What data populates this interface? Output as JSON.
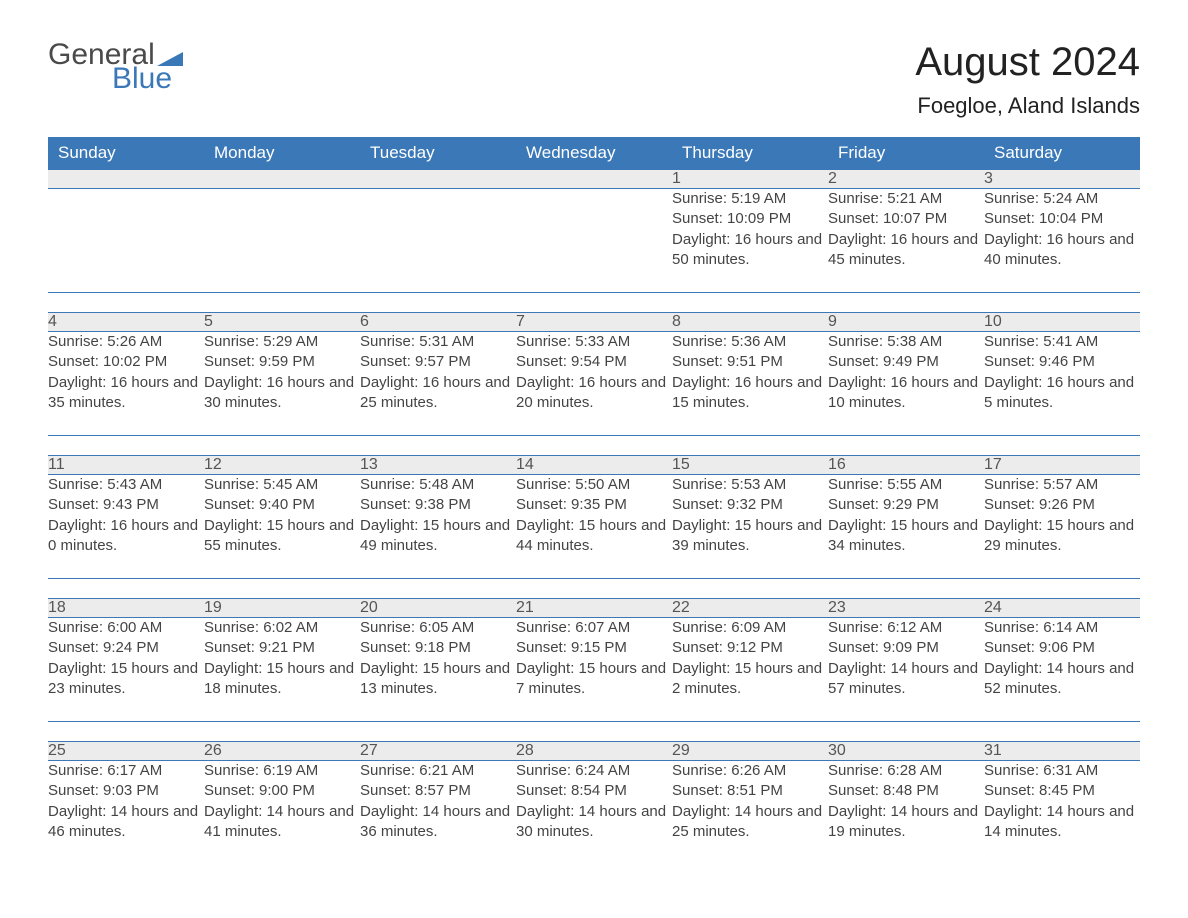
{
  "brand": {
    "part1": "General",
    "part2": "Blue",
    "accent_color": "#3b78b8"
  },
  "title": "August 2024",
  "location": "Foegloe, Aland Islands",
  "colors": {
    "header_bg": "#3b78b8",
    "header_text": "#ffffff",
    "daynum_bg": "#ececec",
    "text": "#444444",
    "rule": "#3b78b8",
    "background": "#ffffff"
  },
  "fonts": {
    "body_size": 15,
    "header_size": 17,
    "title_size": 40,
    "location_size": 22
  },
  "dayHeaders": [
    "Sunday",
    "Monday",
    "Tuesday",
    "Wednesday",
    "Thursday",
    "Friday",
    "Saturday"
  ],
  "weeks": [
    [
      null,
      null,
      null,
      null,
      {
        "d": "1",
        "sunrise": "5:19 AM",
        "sunset": "10:09 PM",
        "dl_h": "16",
        "dl_m": "50"
      },
      {
        "d": "2",
        "sunrise": "5:21 AM",
        "sunset": "10:07 PM",
        "dl_h": "16",
        "dl_m": "45"
      },
      {
        "d": "3",
        "sunrise": "5:24 AM",
        "sunset": "10:04 PM",
        "dl_h": "16",
        "dl_m": "40"
      }
    ],
    [
      {
        "d": "4",
        "sunrise": "5:26 AM",
        "sunset": "10:02 PM",
        "dl_h": "16",
        "dl_m": "35"
      },
      {
        "d": "5",
        "sunrise": "5:29 AM",
        "sunset": "9:59 PM",
        "dl_h": "16",
        "dl_m": "30"
      },
      {
        "d": "6",
        "sunrise": "5:31 AM",
        "sunset": "9:57 PM",
        "dl_h": "16",
        "dl_m": "25"
      },
      {
        "d": "7",
        "sunrise": "5:33 AM",
        "sunset": "9:54 PM",
        "dl_h": "16",
        "dl_m": "20"
      },
      {
        "d": "8",
        "sunrise": "5:36 AM",
        "sunset": "9:51 PM",
        "dl_h": "16",
        "dl_m": "15"
      },
      {
        "d": "9",
        "sunrise": "5:38 AM",
        "sunset": "9:49 PM",
        "dl_h": "16",
        "dl_m": "10"
      },
      {
        "d": "10",
        "sunrise": "5:41 AM",
        "sunset": "9:46 PM",
        "dl_h": "16",
        "dl_m": "5"
      }
    ],
    [
      {
        "d": "11",
        "sunrise": "5:43 AM",
        "sunset": "9:43 PM",
        "dl_h": "16",
        "dl_m": "0"
      },
      {
        "d": "12",
        "sunrise": "5:45 AM",
        "sunset": "9:40 PM",
        "dl_h": "15",
        "dl_m": "55"
      },
      {
        "d": "13",
        "sunrise": "5:48 AM",
        "sunset": "9:38 PM",
        "dl_h": "15",
        "dl_m": "49"
      },
      {
        "d": "14",
        "sunrise": "5:50 AM",
        "sunset": "9:35 PM",
        "dl_h": "15",
        "dl_m": "44"
      },
      {
        "d": "15",
        "sunrise": "5:53 AM",
        "sunset": "9:32 PM",
        "dl_h": "15",
        "dl_m": "39"
      },
      {
        "d": "16",
        "sunrise": "5:55 AM",
        "sunset": "9:29 PM",
        "dl_h": "15",
        "dl_m": "34"
      },
      {
        "d": "17",
        "sunrise": "5:57 AM",
        "sunset": "9:26 PM",
        "dl_h": "15",
        "dl_m": "29"
      }
    ],
    [
      {
        "d": "18",
        "sunrise": "6:00 AM",
        "sunset": "9:24 PM",
        "dl_h": "15",
        "dl_m": "23"
      },
      {
        "d": "19",
        "sunrise": "6:02 AM",
        "sunset": "9:21 PM",
        "dl_h": "15",
        "dl_m": "18"
      },
      {
        "d": "20",
        "sunrise": "6:05 AM",
        "sunset": "9:18 PM",
        "dl_h": "15",
        "dl_m": "13"
      },
      {
        "d": "21",
        "sunrise": "6:07 AM",
        "sunset": "9:15 PM",
        "dl_h": "15",
        "dl_m": "7"
      },
      {
        "d": "22",
        "sunrise": "6:09 AM",
        "sunset": "9:12 PM",
        "dl_h": "15",
        "dl_m": "2"
      },
      {
        "d": "23",
        "sunrise": "6:12 AM",
        "sunset": "9:09 PM",
        "dl_h": "14",
        "dl_m": "57"
      },
      {
        "d": "24",
        "sunrise": "6:14 AM",
        "sunset": "9:06 PM",
        "dl_h": "14",
        "dl_m": "52"
      }
    ],
    [
      {
        "d": "25",
        "sunrise": "6:17 AM",
        "sunset": "9:03 PM",
        "dl_h": "14",
        "dl_m": "46"
      },
      {
        "d": "26",
        "sunrise": "6:19 AM",
        "sunset": "9:00 PM",
        "dl_h": "14",
        "dl_m": "41"
      },
      {
        "d": "27",
        "sunrise": "6:21 AM",
        "sunset": "8:57 PM",
        "dl_h": "14",
        "dl_m": "36"
      },
      {
        "d": "28",
        "sunrise": "6:24 AM",
        "sunset": "8:54 PM",
        "dl_h": "14",
        "dl_m": "30"
      },
      {
        "d": "29",
        "sunrise": "6:26 AM",
        "sunset": "8:51 PM",
        "dl_h": "14",
        "dl_m": "25"
      },
      {
        "d": "30",
        "sunrise": "6:28 AM",
        "sunset": "8:48 PM",
        "dl_h": "14",
        "dl_m": "19"
      },
      {
        "d": "31",
        "sunrise": "6:31 AM",
        "sunset": "8:45 PM",
        "dl_h": "14",
        "dl_m": "14"
      }
    ]
  ],
  "labels": {
    "sunrise": "Sunrise: ",
    "sunset": "Sunset: ",
    "daylight1": "Daylight: ",
    "daylight2": " hours and ",
    "daylight3": " minutes."
  }
}
